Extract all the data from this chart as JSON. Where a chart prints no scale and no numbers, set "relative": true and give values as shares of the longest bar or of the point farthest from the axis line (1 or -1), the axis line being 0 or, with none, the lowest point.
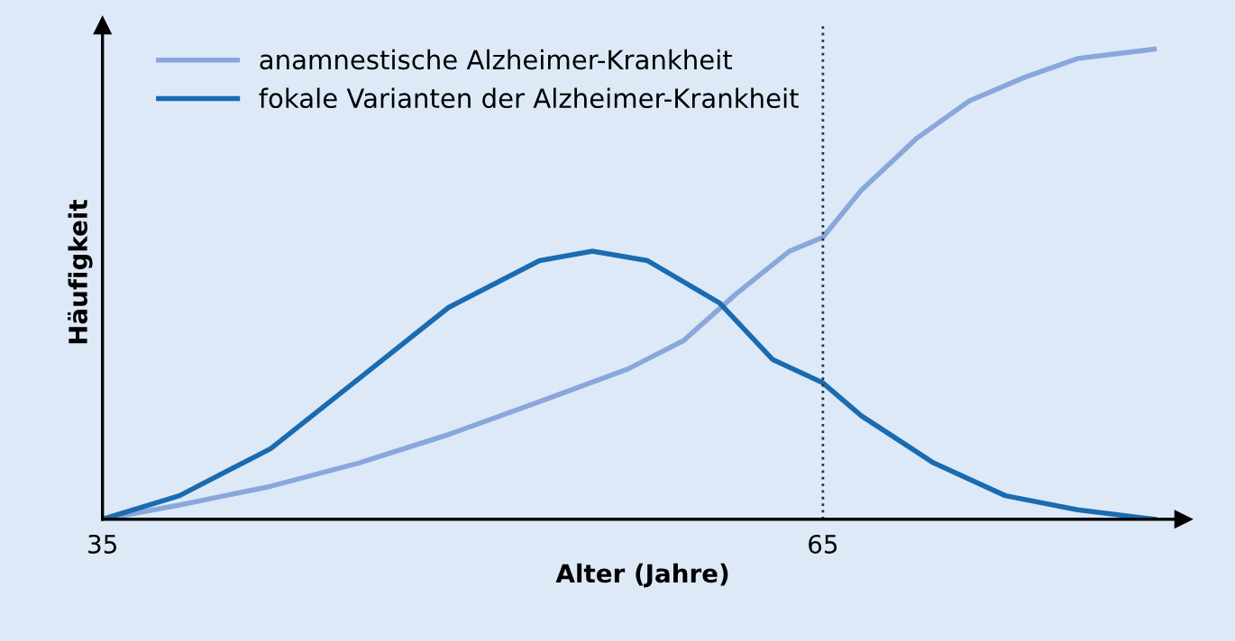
{
  "chart_data": {
    "type": "line",
    "relative": true,
    "xlabel": "Alter (Jahre)",
    "ylabel": "Häufigkeit",
    "xlim": [
      35,
      80
    ],
    "xticks": [
      35,
      65
    ],
    "grid": false,
    "legend": "top left",
    "line_style": "solid",
    "marker": "none",
    "series": [
      {
        "name": "anamnestische Alzheimer-Krankheit",
        "color": "#8aa7dc",
        "x": [
          35,
          38.2,
          42.0,
          45.7,
          49.4,
          53.2,
          56.9,
          59.2,
          61.4,
          63.6,
          65,
          66.6,
          68.9,
          71.1,
          73.4,
          75.6,
          78.8
        ],
        "values": [
          0,
          0.03,
          0.07,
          0.12,
          0.18,
          0.25,
          0.32,
          0.38,
          0.48,
          0.57,
          0.6,
          0.7,
          0.81,
          0.89,
          0.94,
          0.98,
          1
        ]
      },
      {
        "name": "fokale Varianten der Alzheimer-Krankheit",
        "color": "#1a6bb0",
        "x": [
          35,
          38.2,
          42.0,
          45.7,
          49.4,
          53.2,
          55.4,
          57.7,
          60.7,
          62.9,
          65,
          66.6,
          69.6,
          72.6,
          75.6,
          78.8
        ],
        "values": [
          0,
          0.05,
          0.15,
          0.3,
          0.45,
          0.55,
          0.57,
          0.55,
          0.46,
          0.34,
          0.29,
          0.22,
          0.12,
          0.05,
          0.02,
          0
        ]
      }
    ],
    "ref_lines": [
      {
        "axis": "x",
        "value": 65,
        "color": "#333333",
        "line_style": "dotted"
      }
    ]
  }
}
